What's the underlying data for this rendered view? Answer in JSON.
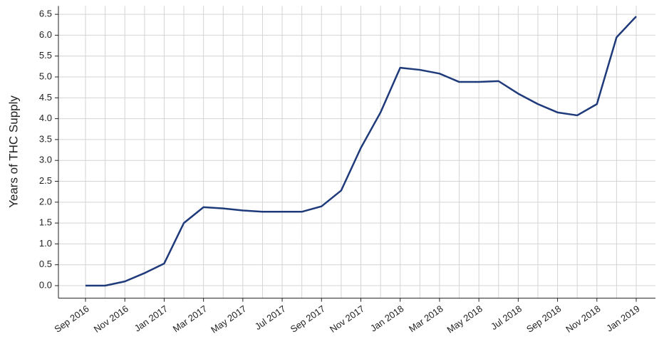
{
  "chart_data": {
    "type": "line",
    "y_label": "Years of THC Supply",
    "categories": [
      "Sep 2016",
      null,
      "Nov 2016",
      null,
      "Jan 2017",
      null,
      "Mar 2017",
      null,
      "May 2017",
      null,
      "Jul 2017",
      null,
      "Sep 2017",
      null,
      "Nov 2017",
      null,
      "Jan 2018",
      null,
      "Mar 2018",
      null,
      "May 2018",
      null,
      "Jul 2018",
      null,
      "Sep 2018",
      null,
      "Nov 2018",
      null,
      "Jan 2019"
    ],
    "series": [
      {
        "color": "#1f3a7a",
        "values": [
          0.0,
          0.0,
          0.1,
          0.3,
          0.53,
          1.5,
          1.88,
          1.85,
          1.8,
          1.77,
          1.77,
          1.77,
          1.9,
          2.28,
          3.3,
          4.15,
          5.22,
          5.17,
          5.08,
          4.88,
          4.88,
          4.9,
          4.6,
          4.35,
          4.15,
          4.08,
          4.35,
          5.95,
          6.45
        ]
      }
    ],
    "ylim": [
      -0.3,
      6.7
    ],
    "yticks": [
      {
        "value": 0,
        "label": "0.0"
      },
      0.5,
      {
        "value": 1,
        "label": "1.0"
      },
      1.5,
      {
        "value": 2,
        "label": "2.0"
      },
      2.5,
      {
        "value": 3,
        "label": "3.0"
      },
      3.5,
      {
        "value": 4,
        "label": "4.0"
      },
      4.5,
      {
        "value": 5,
        "label": "5.0"
      },
      5.5,
      {
        "value": 6,
        "label": "6.0"
      },
      6.5
    ],
    "grid": true
  }
}
